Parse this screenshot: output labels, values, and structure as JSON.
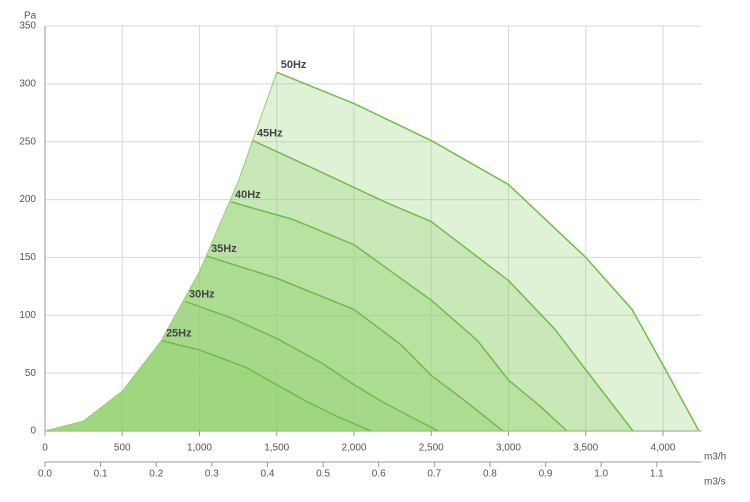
{
  "chart_data": {
    "type": "fan-curve",
    "y_label": "Pa",
    "x_label": "m3/h",
    "x2_label": "m3/s",
    "xlim": [
      0,
      4250
    ],
    "xticks": [
      0,
      500,
      {
        "value": 1000,
        "label": "1,000"
      },
      {
        "value": 1500,
        "label": "1,500"
      },
      {
        "value": 2000,
        "label": "2,000"
      },
      {
        "value": 2500,
        "label": "2,500"
      },
      {
        "value": 3000,
        "label": "3,000"
      },
      {
        "value": 3500,
        "label": "3,500"
      },
      {
        "value": 4000,
        "label": "4,000"
      }
    ],
    "x2lim": [
      0,
      1.1806
    ],
    "x2ticks": [
      {
        "value": 0,
        "label": "0.0"
      },
      0.1,
      0.2,
      0.3,
      0.4,
      0.5,
      0.6,
      0.7,
      0.8,
      0.9,
      {
        "value": 1,
        "label": "1.0"
      },
      1.1
    ],
    "ylim": [
      0,
      350
    ],
    "yticks": [
      0,
      50,
      100,
      150,
      200,
      250,
      300,
      350
    ],
    "grid": true,
    "area_color": "#8fd16b",
    "envelope": {
      "x": [
        0,
        250,
        500,
        750,
        1000,
        1250,
        1500
      ],
      "values": [
        0,
        8.6,
        34.4,
        77.5,
        137.8,
        215.3,
        310
      ]
    },
    "series": [
      {
        "name": "50Hz",
        "color": "#6cbf45",
        "x": [
          1500,
          2000,
          2500,
          3000,
          3500,
          3800,
          4000,
          4233
        ],
        "values": [
          310,
          283,
          251,
          213,
          150,
          105,
          57,
          0
        ]
      },
      {
        "name": "45Hz",
        "color": "#6cbf45",
        "x": [
          1346,
          1800,
          2200,
          2500,
          3000,
          3300,
          3500,
          3806
        ],
        "values": [
          251,
          223,
          198,
          181,
          130,
          88,
          53,
          0
        ]
      },
      {
        "name": "40Hz",
        "color": "#6cbf45",
        "x": [
          1204,
          1600,
          2000,
          2500,
          2800,
          3000,
          3200,
          3379
        ],
        "values": [
          198,
          183,
          161,
          113,
          78,
          44,
          22,
          0
        ]
      },
      {
        "name": "35Hz",
        "color": "#6cbf45",
        "x": [
          1049,
          1500,
          2000,
          2300,
          2500,
          2700,
          2964
        ],
        "values": [
          151,
          132,
          105,
          75,
          48,
          28,
          0
        ]
      },
      {
        "name": "30Hz",
        "color": "#6cbf45",
        "x": [
          906,
          1200,
          1500,
          1800,
          2000,
          2200,
          2544
        ],
        "values": [
          112,
          98,
          80,
          58,
          40,
          24,
          0
        ]
      },
      {
        "name": "25Hz",
        "color": "#6cbf45",
        "x": [
          757,
          1000,
          1300,
          1500,
          1700,
          1900,
          2110
        ],
        "values": [
          78,
          70,
          55,
          40,
          25,
          12,
          0
        ]
      }
    ]
  }
}
